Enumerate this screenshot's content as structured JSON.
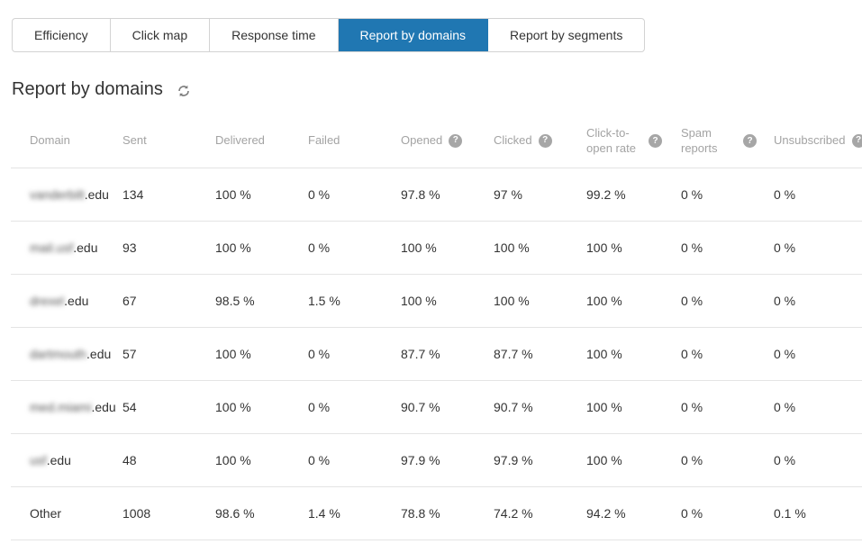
{
  "colors": {
    "active_tab_bg": "#2077b2",
    "tab_border": "#d3d3d3",
    "header_text": "#a3a3a3",
    "row_border": "#e4e4e4",
    "body_text": "#333333",
    "help_icon_bg": "#a6a6a6"
  },
  "icons": {
    "refresh": "refresh-icon",
    "help_glyph": "?"
  },
  "tab_bar": {
    "tabs": [
      {
        "label": "Efficiency",
        "active": false
      },
      {
        "label": "Click map",
        "active": false
      },
      {
        "label": "Response time",
        "active": false
      },
      {
        "label": "Report by domains",
        "active": true
      },
      {
        "label": "Report by segments",
        "active": false
      }
    ]
  },
  "header": {
    "title": "Report by domains"
  },
  "table": {
    "columns": [
      {
        "key": "domain",
        "label": "Domain",
        "help": false,
        "nowrap": true
      },
      {
        "key": "sent",
        "label": "Sent",
        "help": false,
        "nowrap": true
      },
      {
        "key": "delivered",
        "label": "Delivered",
        "help": false,
        "nowrap": true
      },
      {
        "key": "failed",
        "label": "Failed",
        "help": false,
        "nowrap": true
      },
      {
        "key": "opened",
        "label": "Opened",
        "help": true,
        "nowrap": true
      },
      {
        "key": "clicked",
        "label": "Clicked",
        "help": true,
        "nowrap": true
      },
      {
        "key": "click_to_open_rate",
        "label": "Click-to-open rate",
        "help": true,
        "nowrap": false
      },
      {
        "key": "spam_reports",
        "label": "Spam reports",
        "help": true,
        "nowrap": false
      },
      {
        "key": "unsubscribed",
        "label": "Unsubscribed",
        "help": true,
        "nowrap": true
      }
    ],
    "value_keys": [
      "sent",
      "delivered",
      "failed",
      "opened",
      "clicked",
      "click_to_open_rate",
      "spam_reports",
      "unsubscribed"
    ],
    "rows": [
      {
        "domain": {
          "blurred": "vanderbilt",
          "visible": ".edu"
        },
        "values": [
          "134",
          "100 %",
          "0 %",
          "97.8 %",
          "97 %",
          "99.2 %",
          "0 %",
          "0 %"
        ]
      },
      {
        "domain": {
          "blurred": "mail.usf",
          "visible": ".edu"
        },
        "values": [
          "93",
          "100 %",
          "0 %",
          "100 %",
          "100 %",
          "100 %",
          "0 %",
          "0 %"
        ]
      },
      {
        "domain": {
          "blurred": "drexel",
          "visible": ".edu"
        },
        "values": [
          "67",
          "98.5 %",
          "1.5 %",
          "100 %",
          "100 %",
          "100 %",
          "0 %",
          "0 %"
        ]
      },
      {
        "domain": {
          "blurred": "dartmouth",
          "visible": ".edu"
        },
        "values": [
          "57",
          "100 %",
          "0 %",
          "87.7 %",
          "87.7 %",
          "100 %",
          "0 %",
          "0 %"
        ]
      },
      {
        "domain": {
          "blurred": "med.miami",
          "visible": ".edu"
        },
        "values": [
          "54",
          "100 %",
          "0 %",
          "90.7 %",
          "90.7 %",
          "100 %",
          "0 %",
          "0 %"
        ]
      },
      {
        "domain": {
          "blurred": "usf",
          "visible": ".edu"
        },
        "values": [
          "48",
          "100 %",
          "0 %",
          "97.9 %",
          "97.9 %",
          "100 %",
          "0 %",
          "0 %"
        ]
      },
      {
        "domain": {
          "blurred": "",
          "visible": "Other"
        },
        "values": [
          "1008",
          "98.6 %",
          "1.4 %",
          "78.8 %",
          "74.2 %",
          "94.2 %",
          "0 %",
          "0.1 %"
        ]
      }
    ]
  }
}
